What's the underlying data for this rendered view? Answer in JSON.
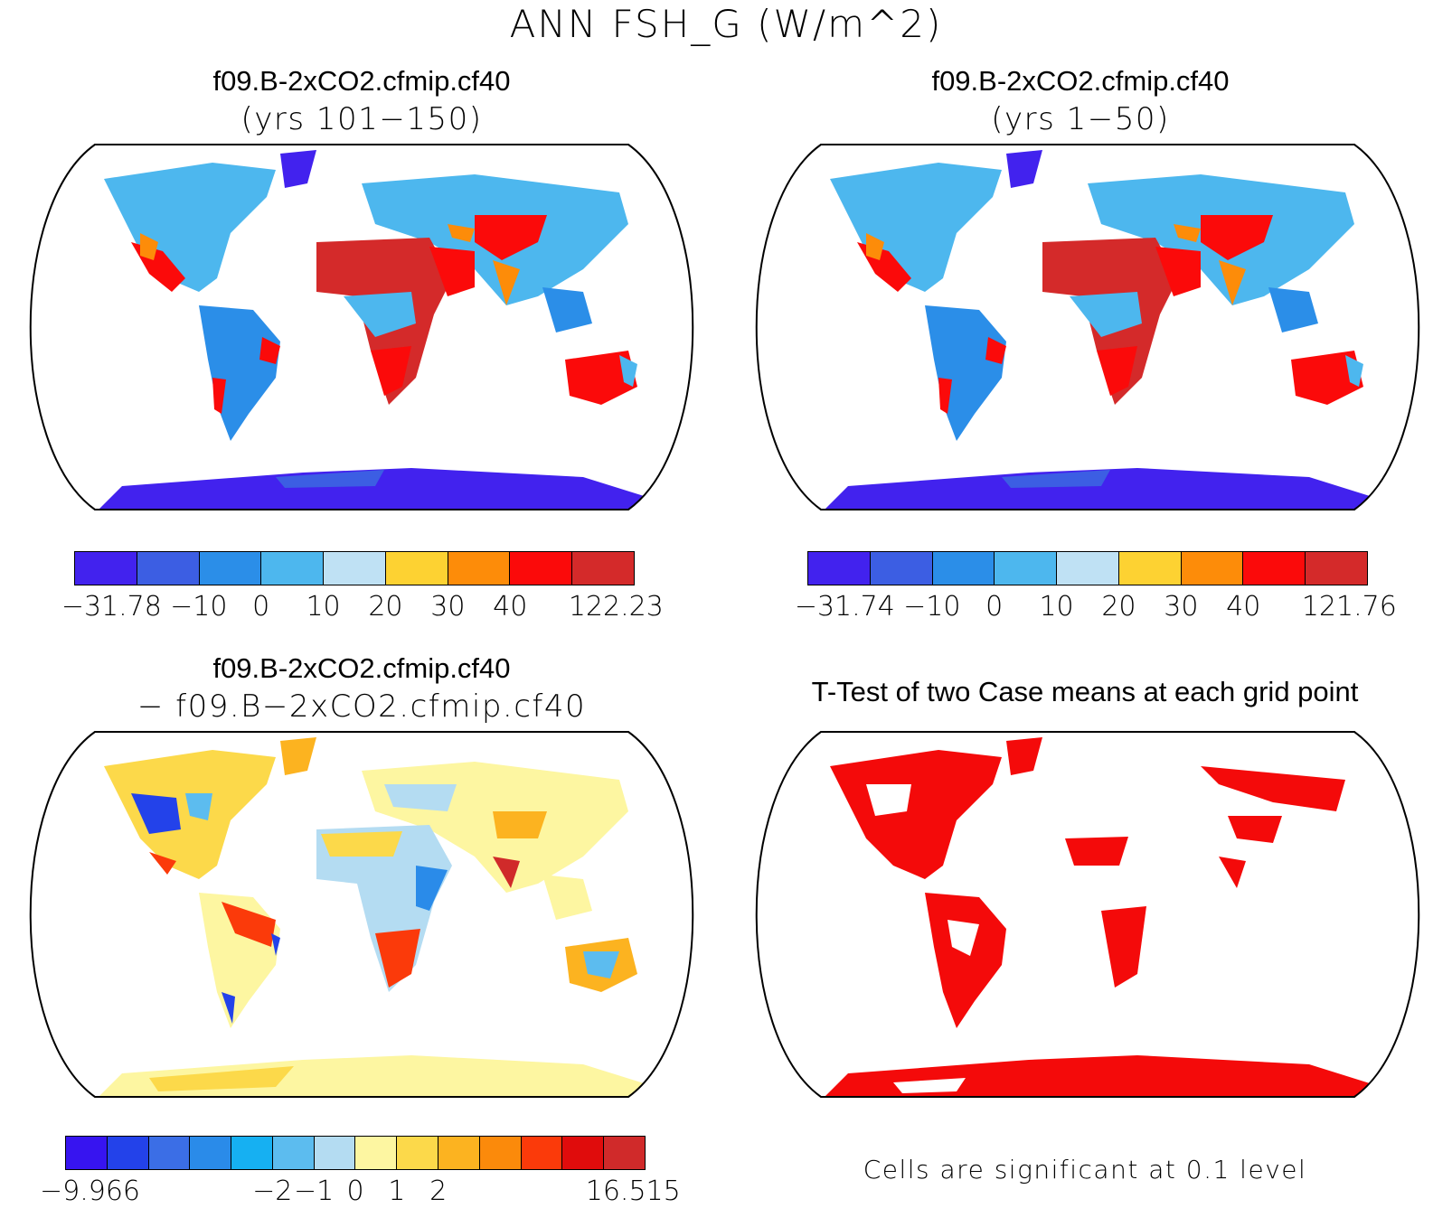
{
  "figure": {
    "title": "ANN FSH_G (W/m^2)"
  },
  "panels": [
    {
      "id": "top-left",
      "title": "f09.B-2xCO2.cfmip.cf40",
      "subtitle": "(yrs 101−150)",
      "colorbar": {
        "colors": [
          "#4222ee",
          "#3c5ee3",
          "#2b8ee8",
          "#4db7ee",
          "#bfe1f4",
          "#fdd232",
          "#fd8c09",
          "#fb0a0a",
          "#d42a2a"
        ],
        "ticks": [
          "−31.78",
          "−10",
          "0",
          "10",
          "20",
          "30",
          "40",
          "122.23"
        ]
      }
    },
    {
      "id": "top-right",
      "title": "f09.B-2xCO2.cfmip.cf40",
      "subtitle": "(yrs 1−50)",
      "colorbar": {
        "colors": [
          "#4222ee",
          "#3c5ee3",
          "#2b8ee8",
          "#4db7ee",
          "#bfe1f4",
          "#fdd232",
          "#fd8c09",
          "#fb0a0a",
          "#d42a2a"
        ],
        "ticks": [
          "−31.74",
          "−10",
          "0",
          "10",
          "20",
          "30",
          "40",
          "121.76"
        ]
      }
    },
    {
      "id": "bottom-left",
      "title": "f09.B-2xCO2.cfmip.cf40",
      "subtitle": "− f09.B−2xCO2.cfmip.cf40",
      "colorbar": {
        "colors": [
          "#3714f0",
          "#2342ea",
          "#3b6ee6",
          "#2a8be9",
          "#16b0f2",
          "#5cbcef",
          "#b4dcf2",
          "#fdf6a1",
          "#fcd94a",
          "#fcb320",
          "#fb8a0b",
          "#fb3a0a",
          "#e00c0c",
          "#d02a2a"
        ],
        "ticks": [
          "−9.966",
          "−2",
          "−1",
          "0",
          "1",
          "2",
          "16.515"
        ]
      }
    },
    {
      "id": "bottom-right",
      "title": "T-Test of two Case means at each grid point",
      "footnote": "Cells are significant at 0.1 level",
      "significance_color": "#f40a0a"
    }
  ]
}
